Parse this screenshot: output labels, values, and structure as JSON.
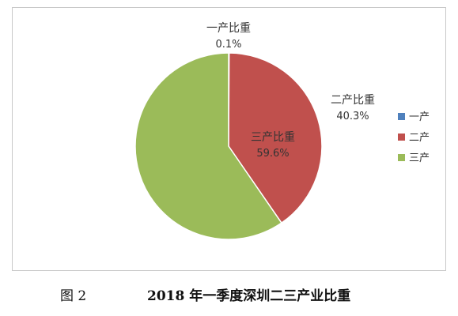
{
  "chart_data": {
    "type": "pie",
    "series": [
      {
        "name": "",
        "categories": [
          "一产",
          "二产",
          "三产"
        ],
        "values": [
          0.1,
          40.3,
          59.6
        ],
        "slice_labels": [
          "一产比重",
          "二产比重",
          "三产比重"
        ],
        "value_labels": [
          "0.1%",
          "40.3%",
          "59.6%"
        ]
      }
    ],
    "legend": {
      "position": "right",
      "entries": [
        "一产",
        "二产",
        "三产"
      ]
    },
    "colors": [
      "#4f81bd",
      "#c0504d",
      "#9bbb59"
    ]
  },
  "caption": {
    "figure": "图 2",
    "title": "2018 年一季度深圳二三产业比重"
  }
}
